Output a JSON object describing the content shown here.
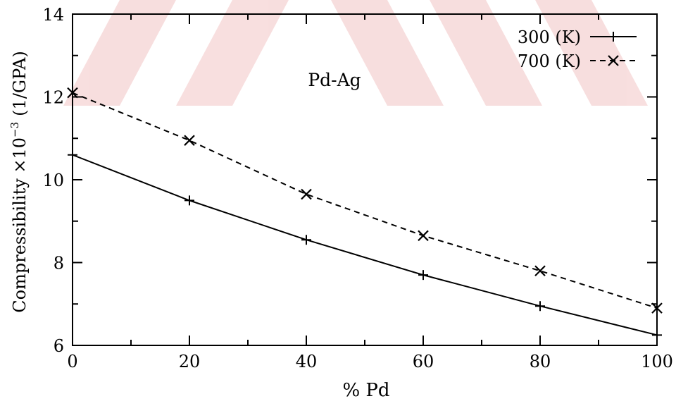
{
  "chart_data": {
    "type": "line",
    "title": "",
    "annotation": "Pd-Ag",
    "xlabel": "% Pd",
    "ylabel_main": "Compressibility ×10",
    "ylabel_exp": "−3",
    "ylabel_unit": "(1/GPA)",
    "xlim": [
      0,
      100
    ],
    "ylim": [
      6,
      14
    ],
    "xticks": [
      0,
      20,
      40,
      60,
      80,
      100
    ],
    "yticks": [
      6,
      8,
      10,
      12,
      14
    ],
    "legend_position": "top-right",
    "grid": false,
    "series": [
      {
        "name": "300 (K)",
        "marker": "plus",
        "line": "solid",
        "x": [
          0,
          20,
          40,
          60,
          80,
          100
        ],
        "y": [
          10.6,
          9.5,
          8.55,
          7.7,
          6.95,
          6.25
        ]
      },
      {
        "name": "700 (K)",
        "marker": "cross",
        "line": "dashed",
        "x": [
          0,
          20,
          40,
          60,
          80,
          100
        ],
        "y": [
          12.1,
          10.95,
          9.65,
          8.65,
          7.8,
          6.9
        ]
      }
    ]
  }
}
